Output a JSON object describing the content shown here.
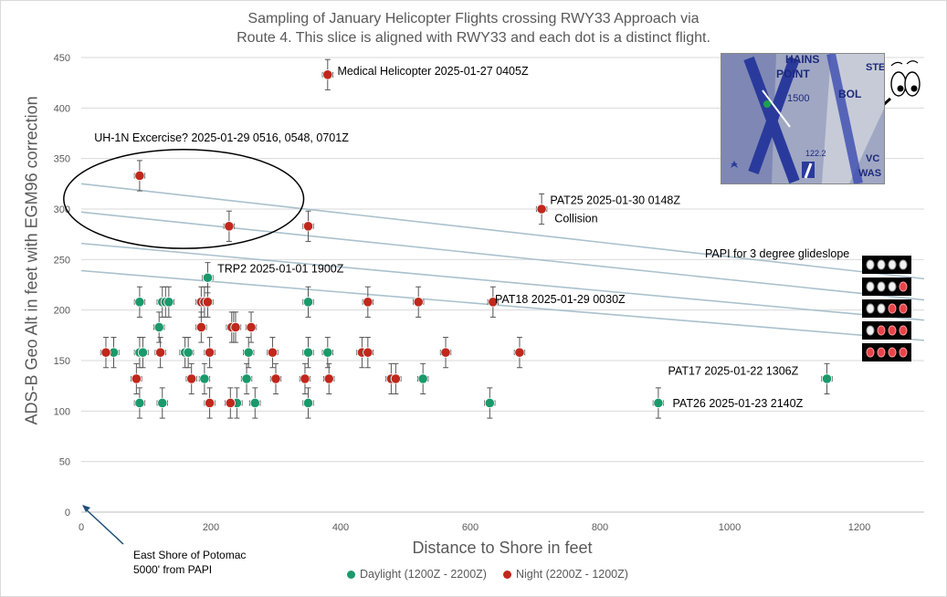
{
  "chart_data": {
    "type": "scatter",
    "title_lines": [
      "Sampling of January Helicopter Flights crossing RWY33 Approach via",
      "Route 4.   This slice is aligned with RWY33 and each dot is a distinct flight."
    ],
    "xlabel": "Distance to Shore in feet",
    "ylabel": "ADS-B Geo Alt  in feet with  EGM96  correction",
    "xlim": [
      0,
      1300
    ],
    "ylim": [
      0,
      450
    ],
    "xticks": [
      0,
      200,
      400,
      600,
      800,
      1000,
      1200
    ],
    "yticks": [
      0,
      50,
      100,
      150,
      200,
      250,
      300,
      350,
      400,
      450
    ],
    "grid": "horizontal",
    "error_bar_y": 15,
    "error_bar_x": 8,
    "series": [
      {
        "name": "Daylight (1200Z - 2200Z)",
        "color": "#1a9a6b",
        "points": [
          [
            50,
            158
          ],
          [
            90,
            108
          ],
          [
            90,
            158
          ],
          [
            90,
            208
          ],
          [
            95,
            158
          ],
          [
            120,
            183
          ],
          [
            125,
            108
          ],
          [
            125,
            208
          ],
          [
            130,
            208
          ],
          [
            135,
            208
          ],
          [
            160,
            158
          ],
          [
            165,
            158
          ],
          [
            190,
            132
          ],
          [
            195,
            232
          ],
          [
            235,
            183
          ],
          [
            240,
            108
          ],
          [
            255,
            132
          ],
          [
            258,
            158
          ],
          [
            268,
            108
          ],
          [
            350,
            108
          ],
          [
            350,
            158
          ],
          [
            350,
            208
          ],
          [
            380,
            158
          ],
          [
            527,
            132
          ],
          [
            630,
            108
          ],
          [
            890,
            108
          ],
          [
            1150,
            132
          ]
        ]
      },
      {
        "name": "Night (2200Z - 1200Z)",
        "color": "#c0281c",
        "points": [
          [
            38,
            158
          ],
          [
            85,
            132
          ],
          [
            90,
            333
          ],
          [
            122,
            158
          ],
          [
            170,
            132
          ],
          [
            185,
            183
          ],
          [
            185,
            208
          ],
          [
            190,
            208
          ],
          [
            195,
            208
          ],
          [
            198,
            158
          ],
          [
            198,
            108
          ],
          [
            228,
            283
          ],
          [
            230,
            108
          ],
          [
            232,
            183
          ],
          [
            238,
            183
          ],
          [
            262,
            183
          ],
          [
            295,
            158
          ],
          [
            300,
            132
          ],
          [
            350,
            283
          ],
          [
            345,
            132
          ],
          [
            380,
            433
          ],
          [
            382,
            132
          ],
          [
            433,
            158
          ],
          [
            442,
            158
          ],
          [
            442,
            208
          ],
          [
            478,
            132
          ],
          [
            485,
            132
          ],
          [
            520,
            208
          ],
          [
            562,
            158
          ],
          [
            635,
            208
          ],
          [
            676,
            158
          ],
          [
            710,
            300
          ]
        ]
      }
    ],
    "annotations": [
      {
        "text": "Medical Helicopter 2025-01-27  0405Z",
        "x": 395,
        "y": 433
      },
      {
        "text": "UH-1N Excercise? 2025-01-29  0516, 0548,  0701Z",
        "x": 20,
        "y": 367
      },
      {
        "text": "PAT25 2025-01-30 0148Z",
        "x": 723,
        "y": 305
      },
      {
        "text": "Collision",
        "x": 730,
        "y": 287
      },
      {
        "text": "TRP2 2025-01-01  1900Z",
        "x": 210,
        "y": 237
      },
      {
        "text": "PAT18 2025-01-29  0030Z",
        "x": 638,
        "y": 207
      },
      {
        "text": "PAT17 2025-01-22  1306Z",
        "x": 905,
        "y": 136
      },
      {
        "text": "PAT26 2025-01-23  2140Z",
        "x": 912,
        "y": 104
      },
      {
        "text": "PAPI for 3 degree glideslope",
        "x": 962,
        "y": 252
      }
    ],
    "glideslope_lines": [
      {
        "x": [
          0,
          1300
        ],
        "y": [
          325,
          231
        ]
      },
      {
        "x": [
          0,
          1300
        ],
        "y": [
          297,
          210
        ]
      },
      {
        "x": [
          0,
          1300
        ],
        "y": [
          266,
          190
        ]
      },
      {
        "x": [
          0,
          1300
        ],
        "y": [
          239,
          170
        ]
      }
    ],
    "ellipse": {
      "cx": 158,
      "cy": 310,
      "rx": 185,
      "ry": 49
    },
    "papi_rows": [
      [
        "white",
        "white",
        "white",
        "white"
      ],
      [
        "white",
        "white",
        "white",
        "red"
      ],
      [
        "white",
        "white",
        "red",
        "red"
      ],
      [
        "white",
        "red",
        "red",
        "red"
      ],
      [
        "red",
        "red",
        "red",
        "red"
      ]
    ]
  },
  "origin_note": [
    "East Shore of Potomac",
    "5000' from PAPI"
  ],
  "legend": {
    "daylight": "Daylight (1200Z - 2200Z)",
    "night": "Night (2200Z - 1200Z)"
  },
  "inset_map": {
    "labels": [
      "HAINS",
      "POINT",
      "1500",
      "BOL",
      "STE",
      "VC",
      "WAS",
      "122.2"
    ]
  }
}
